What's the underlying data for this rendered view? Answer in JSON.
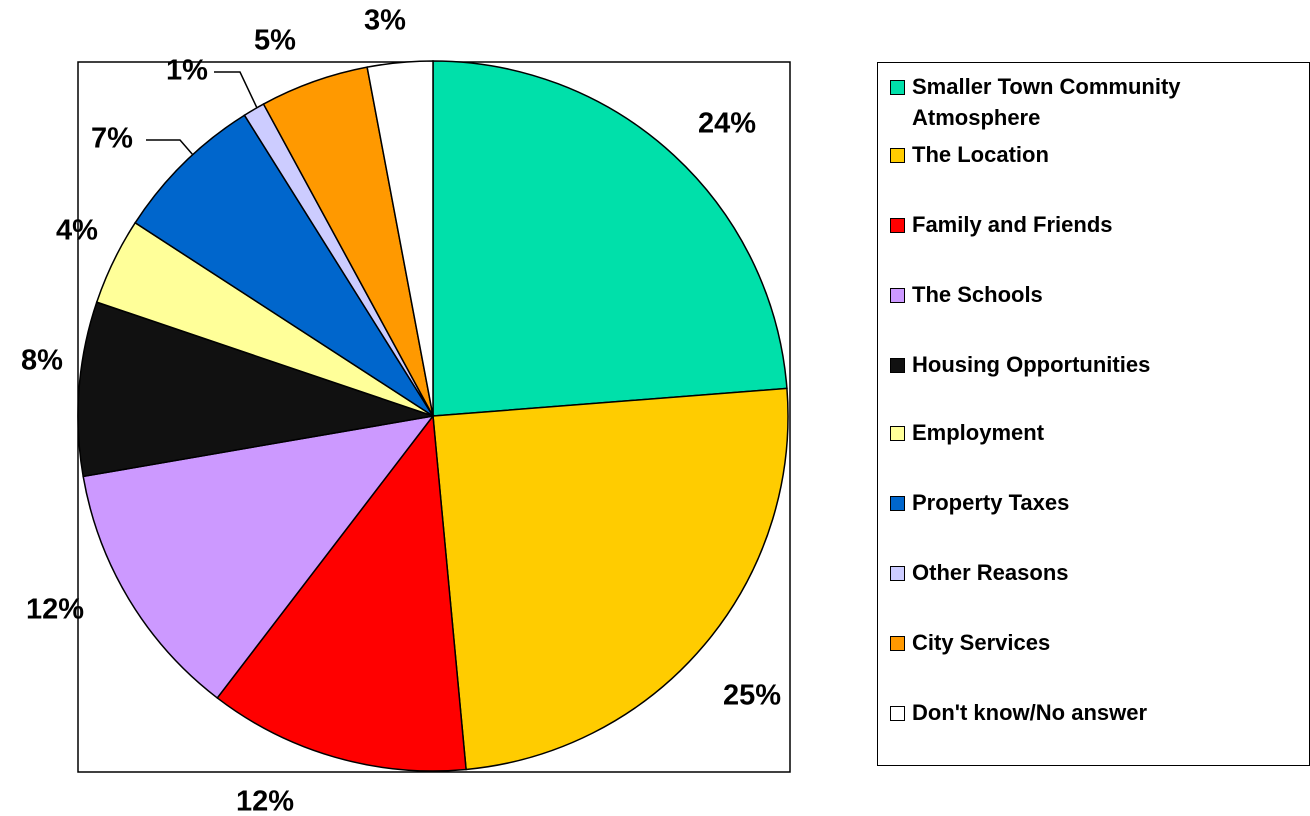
{
  "chart_data": {
    "type": "pie",
    "categories": [
      "Smaller Town Community Atmosphere",
      "The Location",
      "Family and Friends",
      "The Schools",
      "Housing Opportunities",
      "Employment",
      "Property Taxes",
      "Other Reasons",
      "City Services",
      "Don't know/No answer"
    ],
    "values": [
      24,
      25,
      12,
      12,
      8,
      4,
      7,
      1,
      5,
      3
    ],
    "value_labels": [
      "24%",
      "25%",
      "12%",
      "12%",
      "8%",
      "4%",
      "7%",
      "1%",
      "5%",
      "3%"
    ],
    "colors": [
      "#00e0aa",
      "#ffcc00",
      "#ff0000",
      "#cc99ff",
      "#111111",
      "#ffff99",
      "#0066cc",
      "#ccccff",
      "#ff9900",
      "#ffffff"
    ],
    "legend": "right"
  }
}
